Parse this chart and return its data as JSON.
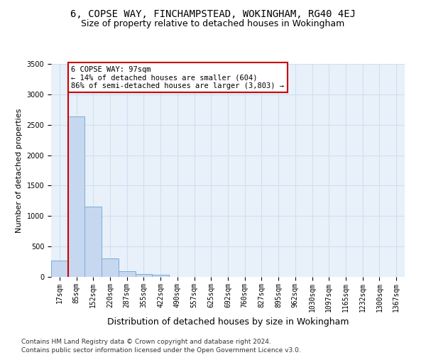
{
  "title1": "6, COPSE WAY, FINCHAMPSTEAD, WOKINGHAM, RG40 4EJ",
  "title2": "Size of property relative to detached houses in Wokingham",
  "xlabel": "Distribution of detached houses by size in Wokingham",
  "ylabel": "Number of detached properties",
  "categories": [
    "17sqm",
    "85sqm",
    "152sqm",
    "220sqm",
    "287sqm",
    "355sqm",
    "422sqm",
    "490sqm",
    "557sqm",
    "625sqm",
    "692sqm",
    "760sqm",
    "827sqm",
    "895sqm",
    "962sqm",
    "1030sqm",
    "1097sqm",
    "1165sqm",
    "1232sqm",
    "1300sqm",
    "1367sqm"
  ],
  "values": [
    270,
    2640,
    1150,
    300,
    90,
    50,
    30,
    0,
    0,
    0,
    0,
    0,
    0,
    0,
    0,
    0,
    0,
    0,
    0,
    0,
    0
  ],
  "bar_color": "#c5d8f0",
  "bar_edge_color": "#7aadd4",
  "vline_x": 0.5,
  "vline_color": "#cc0000",
  "annotation_text": "6 COPSE WAY: 97sqm\n← 14% of detached houses are smaller (604)\n86% of semi-detached houses are larger (3,803) →",
  "annotation_box_color": "#cc0000",
  "ylim": [
    0,
    3500
  ],
  "yticks": [
    0,
    500,
    1000,
    1500,
    2000,
    2500,
    3000,
    3500
  ],
  "grid_color": "#d0dff0",
  "background_color": "#e8f0fa",
  "footer1": "Contains HM Land Registry data © Crown copyright and database right 2024.",
  "footer2": "Contains public sector information licensed under the Open Government Licence v3.0.",
  "title1_fontsize": 10,
  "title2_fontsize": 9,
  "xlabel_fontsize": 9,
  "ylabel_fontsize": 8,
  "tick_fontsize": 7,
  "footer_fontsize": 6.5,
  "annotation_fontsize": 7.5
}
